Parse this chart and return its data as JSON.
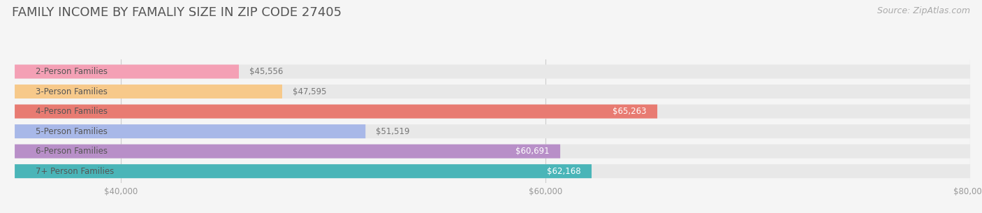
{
  "title": "FAMILY INCOME BY FAMALIY SIZE IN ZIP CODE 27405",
  "source": "Source: ZipAtlas.com",
  "categories": [
    "2-Person Families",
    "3-Person Families",
    "4-Person Families",
    "5-Person Families",
    "6-Person Families",
    "7+ Person Families"
  ],
  "values": [
    45556,
    47595,
    65263,
    51519,
    60691,
    62168
  ],
  "bar_colors": [
    "#f4a0b5",
    "#f7c98a",
    "#e87b72",
    "#a8b8e8",
    "#b88fc8",
    "#4ab5b8"
  ],
  "xlim": [
    35000,
    80000
  ],
  "xticks": [
    40000,
    60000,
    80000
  ],
  "xtick_labels": [
    "$40,000",
    "$60,000",
    "$80,000"
  ],
  "bg_color": "#f5f5f5",
  "bar_bg_color": "#e8e8e8",
  "title_fontsize": 13,
  "label_fontsize": 8.5,
  "value_fontsize": 8.5,
  "source_fontsize": 9,
  "bar_height": 0.7
}
